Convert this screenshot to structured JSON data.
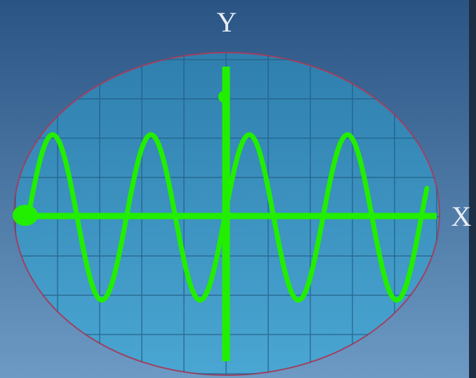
{
  "axis_labels": {
    "y": "Y",
    "x": "X"
  }
}
